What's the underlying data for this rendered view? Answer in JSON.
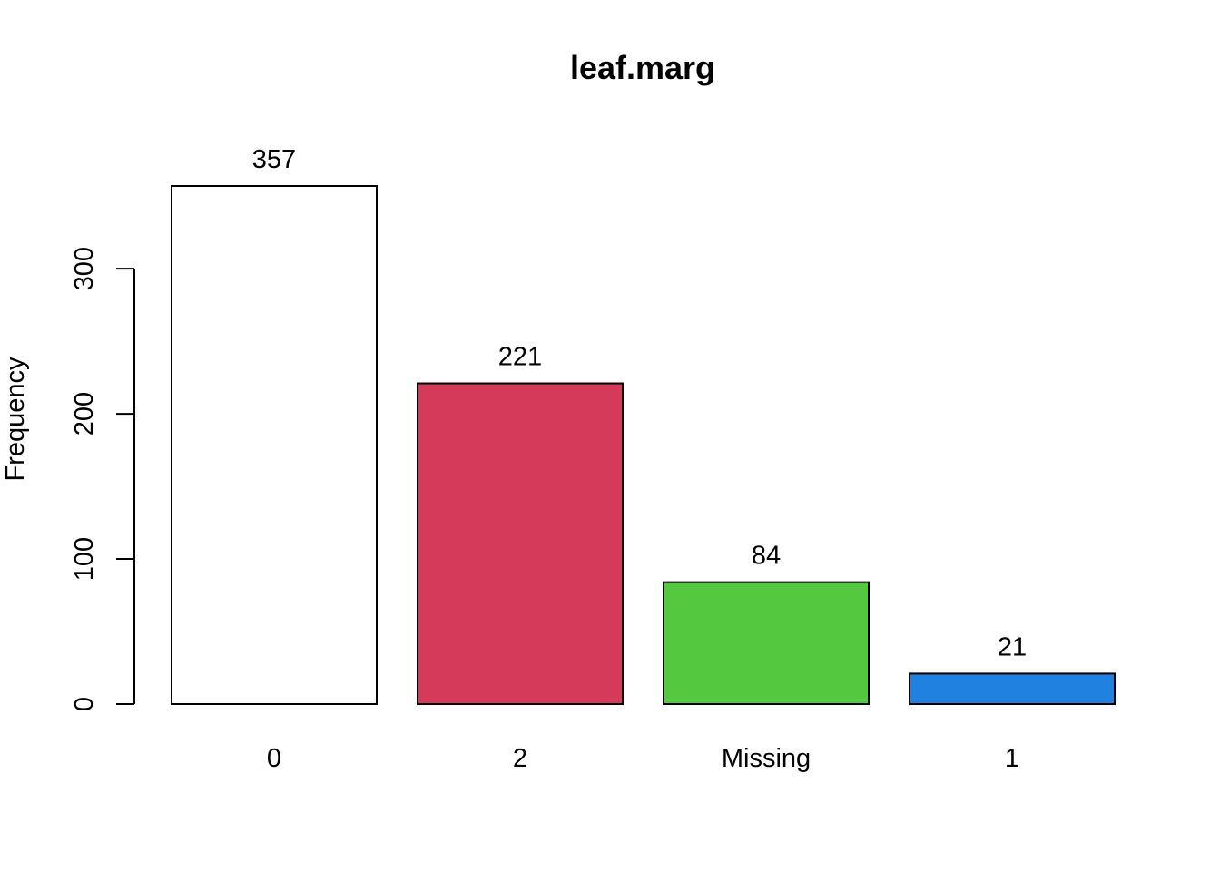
{
  "chart_data": {
    "type": "bar",
    "title": "leaf.marg",
    "xlabel": "",
    "ylabel": "Frequency",
    "categories": [
      "0",
      "2",
      "Missing",
      "1"
    ],
    "values": [
      357,
      221,
      84,
      21
    ],
    "value_labels": [
      "357",
      "221",
      "84",
      "21"
    ],
    "colors": [
      "#ffffff",
      "#d53a5a",
      "#54c940",
      "#2081e0"
    ],
    "yticks": [
      0,
      100,
      200,
      300
    ],
    "ytick_labels": [
      "0",
      "100",
      "200",
      "300"
    ],
    "ylim": [
      0,
      357
    ],
    "grid": false,
    "legend": "none"
  }
}
